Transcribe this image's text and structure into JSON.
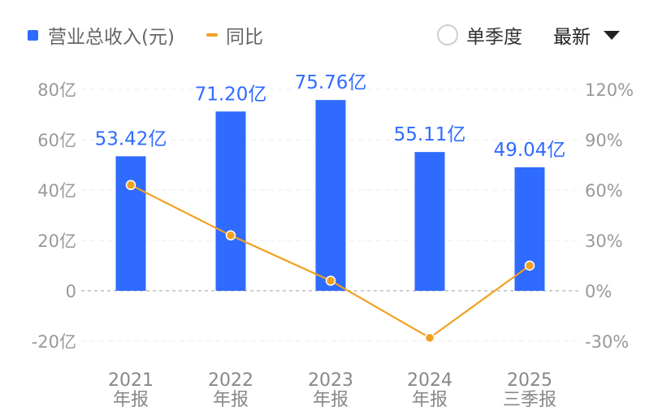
{
  "legend": {
    "bar_label": "营业总收入(元)",
    "line_label": "同比"
  },
  "controls": {
    "single_quarter_label": "单季度",
    "sort_label": "最新"
  },
  "colors": {
    "bar": "#2f6bff",
    "line": "#f0a020",
    "value_label": "#2f6bff",
    "axis_text": "#999999",
    "category_text": "#888888"
  },
  "chart_data": {
    "type": "bar",
    "categories": [
      {
        "year": "2021",
        "period": "年报"
      },
      {
        "year": "2022",
        "period": "年报"
      },
      {
        "year": "2023",
        "period": "年报"
      },
      {
        "year": "2024",
        "period": "年报"
      },
      {
        "year": "2025",
        "period": "三季报"
      }
    ],
    "series": [
      {
        "name": "营业总收入(元)",
        "type": "bar",
        "axis": "left",
        "values": [
          53.42,
          71.2,
          75.76,
          55.11,
          49.04
        ],
        "labels": [
          "53.42亿",
          "71.20亿",
          "75.76亿",
          "55.11亿",
          "49.04亿"
        ]
      },
      {
        "name": "同比",
        "type": "line",
        "axis": "right",
        "values": [
          63,
          33,
          6,
          -28,
          15
        ]
      }
    ],
    "y_left": {
      "ticks": [
        80,
        60,
        40,
        20,
        0,
        -20
      ],
      "tick_labels": [
        "80亿",
        "60亿",
        "40亿",
        "20亿",
        "0",
        "-20亿"
      ],
      "range": [
        -20,
        80
      ]
    },
    "y_right": {
      "ticks": [
        120,
        90,
        60,
        30,
        0,
        -30
      ],
      "tick_labels": [
        "120%",
        "90%",
        "60%",
        "30%",
        "0%",
        "-30%"
      ],
      "range": [
        -30,
        120
      ]
    },
    "grid": true
  }
}
